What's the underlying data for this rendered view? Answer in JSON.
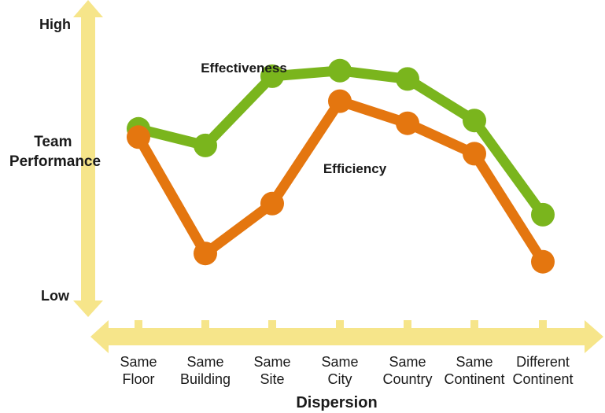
{
  "colors": {
    "axis": "#f6e58a",
    "effectiveness": "#7ab51d",
    "efficiency": "#e4760f",
    "text": "#1a1a1a"
  },
  "chart_data": {
    "type": "line",
    "title": "",
    "xlabel": "Dispersion",
    "ylabel": "Team Performance",
    "y_tick_labels": {
      "high": "High",
      "low": "Low"
    },
    "categories": [
      "Same Floor",
      "Same Building",
      "Same Site",
      "Same City",
      "Same Country",
      "Same Continent",
      "Different Continent"
    ],
    "y_scale": "qualitative (Low to High), values estimated on 0-100 scale",
    "ylim": [
      0,
      100
    ],
    "grid": false,
    "series": [
      {
        "name": "Effectiveness",
        "values": [
          62,
          56,
          81,
          83,
          80,
          65,
          31
        ]
      },
      {
        "name": "Efficiency",
        "values": [
          59,
          17,
          35,
          72,
          64,
          53,
          14
        ]
      }
    ]
  }
}
